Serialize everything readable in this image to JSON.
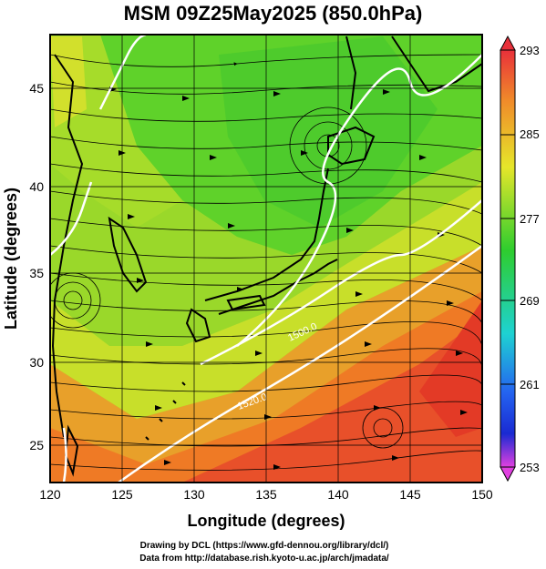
{
  "title": "MSM 09Z25May2025 (850.0hPa)",
  "map": {
    "x_axis": {
      "label": "Longitude (degrees)",
      "range": [
        120,
        150
      ],
      "ticks": [
        "120",
        "125",
        "130",
        "135",
        "140",
        "145",
        "150"
      ]
    },
    "y_axis": {
      "label": "Latitude  (degrees)",
      "range": [
        22.4,
        47.6
      ],
      "ticks": [
        "25",
        "30",
        "35",
        "40",
        "45"
      ]
    },
    "contours": [
      {
        "label": "1500.0"
      },
      {
        "label": "1520.0"
      }
    ],
    "colors": {
      "cool_green": "#5fd22a",
      "yellow_green": "#b6e12a",
      "orange": "#ef7a25",
      "red": "#e33a26",
      "contour": "#ffffff"
    }
  },
  "colorbar": {
    "ticks": [
      "293",
      "285",
      "277",
      "269",
      "261",
      "253"
    ],
    "colors": [
      "#e8303a",
      "#f08a2a",
      "#e6e62a",
      "#2ecd2e",
      "#1ed2d2",
      "#2464f0",
      "#1a2ad2",
      "#e040e0"
    ]
  },
  "credits": [
    "Drawing by DCL (https://www.gfd-dennou.org/library/dcl/)",
    "Data from http://database.rish.kyoto-u.ac.jp/arch/jmadata/"
  ]
}
